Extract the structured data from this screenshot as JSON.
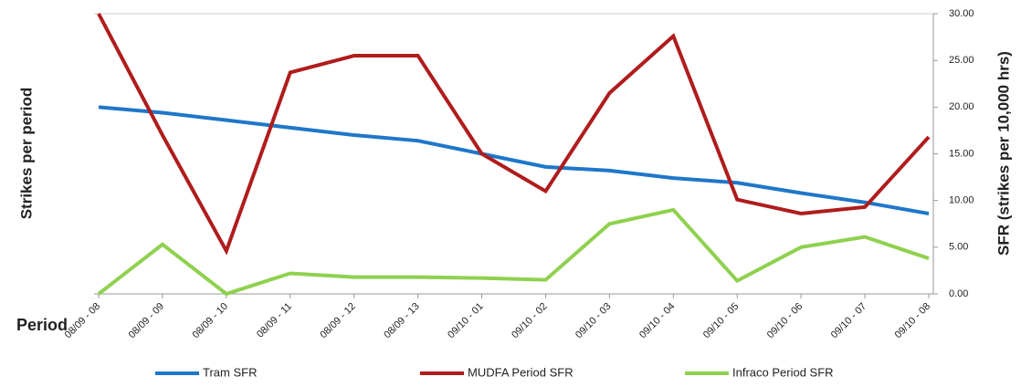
{
  "chart_data": {
    "type": "line",
    "y_label": "Strikes per period",
    "y2_label": "SFR (strikes per 10,000 hrs)",
    "x_label": "Period",
    "categories": [
      "08/09 - 08",
      "08/09 - 09",
      "08/09 - 10",
      "08/09 - 11",
      "08/09 - 12",
      "08/09 - 13",
      "09/10 - 01",
      "09/10 - 02",
      "09/10 - 03",
      "09/10 - 04",
      "09/10 - 05",
      "09/10 - 06",
      "09/10 - 07",
      "09/10 - 08"
    ],
    "series": [
      {
        "name": "Tram SFR",
        "color": "#1f77c9",
        "axis": "y2",
        "values": [
          20.0,
          19.4,
          18.6,
          17.8,
          17.0,
          16.4,
          15.0,
          13.6,
          13.2,
          12.4,
          11.9,
          10.8,
          9.8,
          8.6
        ]
      },
      {
        "name": "MUDFA Period SFR",
        "color": "#b01c1c",
        "axis": "y2",
        "values": [
          30.0,
          17.0,
          4.6,
          23.7,
          25.5,
          25.5,
          15.0,
          11.0,
          21.5,
          27.6,
          10.1,
          8.6,
          9.3,
          16.8
        ]
      },
      {
        "name": "Infraco Period SFR",
        "color": "#8fd14f",
        "axis": "y2",
        "values": [
          0.0,
          5.3,
          0.0,
          2.2,
          1.8,
          1.8,
          1.7,
          1.5,
          7.5,
          9.0,
          1.4,
          5.0,
          6.1,
          3.8
        ]
      }
    ],
    "y2lim": [
      0,
      30
    ],
    "y2ticks": [
      {
        "value": 0,
        "label": "0.00"
      },
      {
        "value": 5,
        "label": "5.00"
      },
      {
        "value": 10,
        "label": "10.00"
      },
      {
        "value": 15,
        "label": "15.00"
      },
      {
        "value": 20,
        "label": "20.00"
      },
      {
        "value": 25,
        "label": "25.00"
      },
      {
        "value": 30,
        "label": "30.00"
      }
    ],
    "legend": "bottom"
  }
}
